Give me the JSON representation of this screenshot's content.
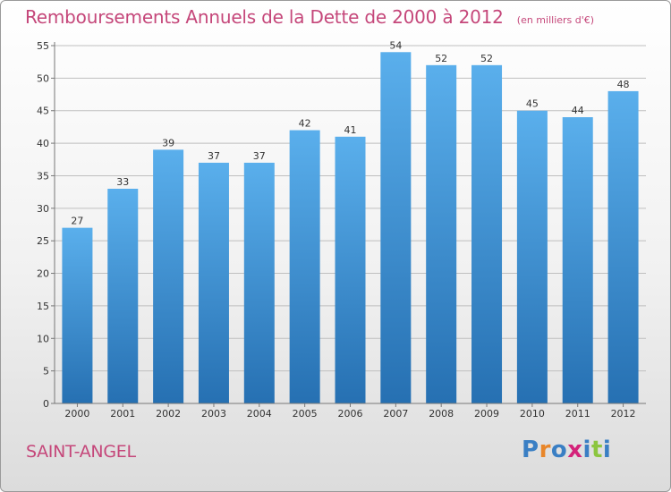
{
  "header": {
    "title": "Remboursements Annuels de la Dette de 2000 à 2012",
    "unit": "(en milliers d'€)"
  },
  "footer": {
    "commune": "SAINT-ANGEL",
    "logo_text": "Proxiti",
    "logo_colors": [
      "#3a7fc4",
      "#e8862a",
      "#3a7fc4",
      "#d4237a",
      "#3a7fc4",
      "#8cc63f",
      "#3a7fc4"
    ]
  },
  "colors": {
    "bar_top": "#5aafec",
    "bar_bottom": "#2670b2",
    "title": "#c5477a",
    "grid": "#bfbfbf"
  },
  "chart_data": {
    "type": "bar",
    "title": "Remboursements Annuels de la Dette de 2000 à 2012",
    "subtitle": "(en milliers d'€)",
    "categories": [
      "2000",
      "2001",
      "2002",
      "2003",
      "2004",
      "2005",
      "2006",
      "2007",
      "2008",
      "2009",
      "2010",
      "2011",
      "2012"
    ],
    "values": [
      27,
      33,
      39,
      37,
      37,
      42,
      41,
      54,
      52,
      52,
      45,
      44,
      48
    ],
    "ylim": [
      0,
      55
    ],
    "yticks": [
      0,
      5,
      10,
      15,
      20,
      25,
      30,
      35,
      40,
      45,
      50,
      55
    ],
    "grid": true,
    "legend": "none"
  }
}
